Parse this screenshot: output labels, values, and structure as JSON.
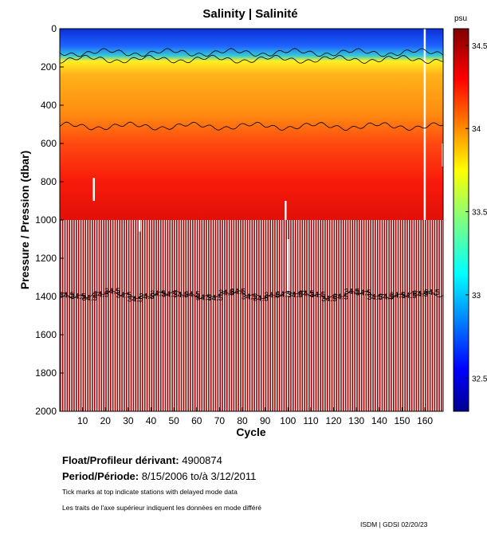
{
  "chart_data": {
    "type": "heatmap",
    "title": "Salinity | Salinité",
    "xlabel": "Cycle",
    "ylabel": "Pressure / Pression (dbar)",
    "xlim": [
      0,
      168
    ],
    "ylim": [
      0,
      2000
    ],
    "x_ticks": [
      10,
      20,
      30,
      40,
      50,
      60,
      70,
      80,
      90,
      100,
      110,
      120,
      130,
      140,
      150,
      160
    ],
    "y_ticks": [
      0,
      200,
      400,
      600,
      800,
      1000,
      1200,
      1400,
      1600,
      1800,
      2000
    ],
    "colorbar": {
      "unit": "psu",
      "range": [
        32.3,
        34.6
      ],
      "ticks": [
        32.5,
        33,
        33.5,
        34,
        34.5
      ],
      "tick_labels": [
        "32.5",
        "33",
        "33.5",
        "34",
        "34.5"
      ]
    },
    "contours": [
      {
        "level": 33.0,
        "pressure": 125
      },
      {
        "level": 33.5,
        "pressure": 160
      },
      {
        "level": 34.0,
        "pressure": 510
      },
      {
        "level": 34.5,
        "pressure": 1390
      }
    ],
    "contour_label_text": "34.5",
    "deep_profile_depth_dbar": 2000,
    "upper_profile_depth_dbar": 1000
  },
  "info": {
    "float_label": "Float/Profileur dérivant:",
    "float_id": "4900874",
    "period_label": "Period/Période:",
    "period_start": "8/15/2006",
    "period_sep": "to/à",
    "period_end": "3/12/2011",
    "note_en": "Tick marks at top indicate stations with delayed mode data",
    "note_fr": "Les traits de l'axe supérieur indiquent les données en mode différé",
    "credit": "ISDM | GDSI 02/20/23"
  }
}
